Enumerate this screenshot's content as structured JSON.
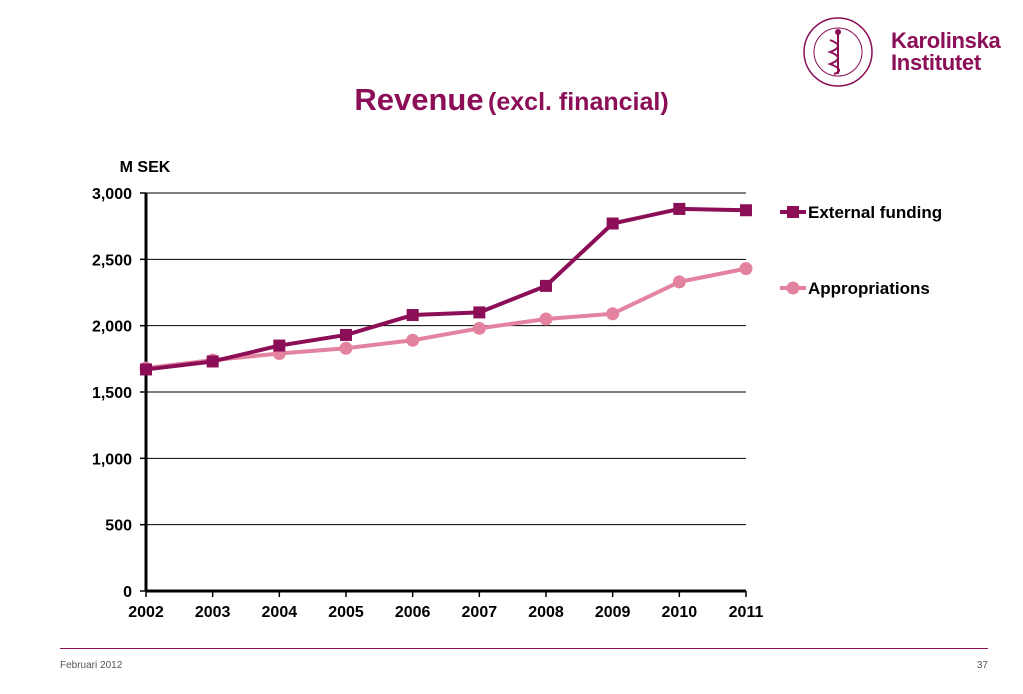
{
  "title": {
    "main": "Revenue",
    "sub": "(excl. financial)"
  },
  "logo": {
    "line1": "Karolinska",
    "line2": "Institutet",
    "seal_text": "KAROLINSKA INSTITUTET · ANNO 1810"
  },
  "colors": {
    "accent": "#8b0e57",
    "external": "#8b0e57",
    "appropriations": "#e3839f"
  },
  "footer": {
    "left": "Februari 2012",
    "right": "37"
  },
  "chart_data": {
    "type": "line",
    "ylabel": "M SEK",
    "x": [
      "2002",
      "2003",
      "2004",
      "2005",
      "2006",
      "2007",
      "2008",
      "2009",
      "2010",
      "2011"
    ],
    "ylim": [
      0,
      3000
    ],
    "yticks": [
      "0",
      "500",
      "1,000",
      "1,500",
      "2,000",
      "2,500",
      "3,000"
    ],
    "ytick_values": [
      0,
      500,
      1000,
      1500,
      2000,
      2500,
      3000
    ],
    "grid": "horizontal",
    "legend_position": "right",
    "series": [
      {
        "name": "External funding",
        "color": "#8b0e57",
        "marker": "square",
        "values": [
          1670,
          1730,
          1850,
          1930,
          2080,
          2100,
          2300,
          2770,
          2880,
          2870
        ]
      },
      {
        "name": "Appropriations",
        "color": "#e3839f",
        "marker": "circle",
        "values": [
          1680,
          1740,
          1790,
          1830,
          1890,
          1980,
          2050,
          2090,
          2330,
          2430
        ]
      }
    ]
  }
}
